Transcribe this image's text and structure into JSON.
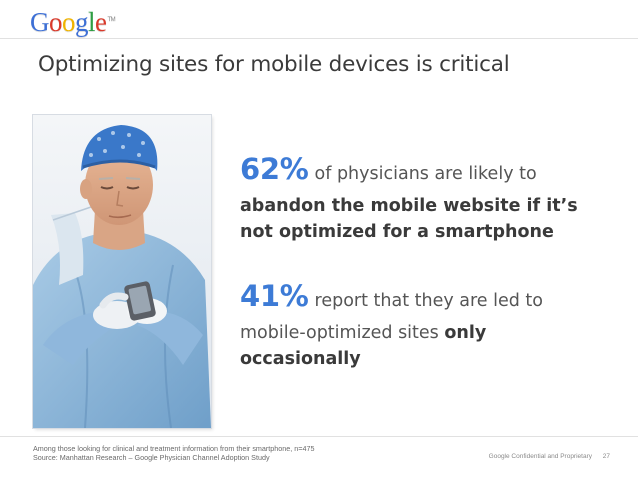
{
  "logo": {
    "letters": [
      {
        "char": "G",
        "color": "#3c6fd6"
      },
      {
        "char": "o",
        "color": "#d93a2b"
      },
      {
        "char": "o",
        "color": "#f0b400"
      },
      {
        "char": "g",
        "color": "#3c6fd6"
      },
      {
        "char": "l",
        "color": "#2f9e44"
      },
      {
        "char": "e",
        "color": "#d93a2b"
      }
    ],
    "trademark": "TM"
  },
  "title": "Optimizing sites for mobile devices is critical",
  "stats": [
    {
      "percent": "62%",
      "text": "of physicians are likely to",
      "bold_line1": "abandon the mobile website if it’s",
      "bold_line2": "not optimized for a smartphone"
    },
    {
      "percent": "41%",
      "text": "report that they are led to",
      "line2_normal": "mobile-optimized sites ",
      "line2_bold": "only",
      "line3_bold": "occasionally"
    }
  ],
  "footnote": {
    "line1": "Among those looking for clinical and treatment information from their smartphone, n=475",
    "line2": "Source: Manhattan Research – Google Physician Channel Adoption Study"
  },
  "confidential": "Google Confidential and Proprietary",
  "page_number": "27",
  "colors": {
    "accent_blue": "#3d7bd6",
    "body_text": "#555555",
    "title_text": "#3b3b3b"
  }
}
